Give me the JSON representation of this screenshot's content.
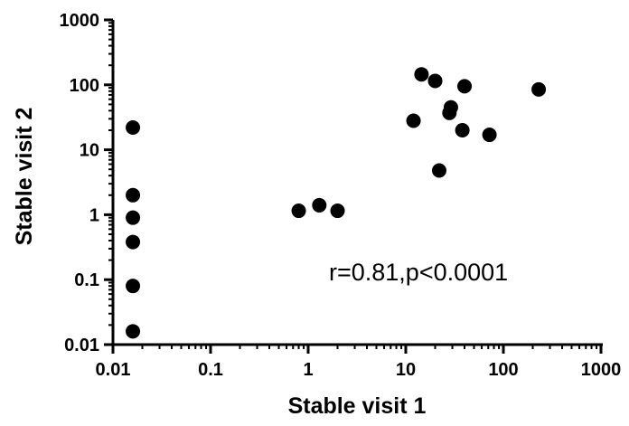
{
  "chart_data": {
    "type": "scatter",
    "title": "",
    "xlabel": "Stable visit 1",
    "ylabel": "Stable visit 2",
    "xscale": "log",
    "yscale": "log",
    "xlim": [
      0.01,
      1000
    ],
    "ylim": [
      0.01,
      1000
    ],
    "x_ticks": [
      0.01,
      0.1,
      1,
      10,
      100,
      1000
    ],
    "y_ticks": [
      0.01,
      0.1,
      1,
      10,
      100,
      1000
    ],
    "x_tick_labels": [
      "0.01",
      "0.1",
      "1",
      "10",
      "100",
      "1000"
    ],
    "y_tick_labels": [
      "0.01",
      "0.1",
      "1",
      "10",
      "100",
      "1000"
    ],
    "grid": false,
    "legend": "none",
    "marker_color": "#000000",
    "annotation": "r=0.81,p<0.0001",
    "points": [
      {
        "x": 0.016,
        "y": 22
      },
      {
        "x": 0.016,
        "y": 2.0
      },
      {
        "x": 0.016,
        "y": 0.9
      },
      {
        "x": 0.016,
        "y": 0.38
      },
      {
        "x": 0.016,
        "y": 0.08
      },
      {
        "x": 0.016,
        "y": 0.016
      },
      {
        "x": 0.8,
        "y": 1.15
      },
      {
        "x": 1.3,
        "y": 1.4
      },
      {
        "x": 2.0,
        "y": 1.15
      },
      {
        "x": 12,
        "y": 28
      },
      {
        "x": 14.5,
        "y": 145
      },
      {
        "x": 20,
        "y": 115
      },
      {
        "x": 22,
        "y": 4.8
      },
      {
        "x": 28,
        "y": 37
      },
      {
        "x": 29,
        "y": 45
      },
      {
        "x": 38,
        "y": 20
      },
      {
        "x": 40,
        "y": 95
      },
      {
        "x": 72,
        "y": 17
      },
      {
        "x": 230,
        "y": 85
      }
    ]
  }
}
